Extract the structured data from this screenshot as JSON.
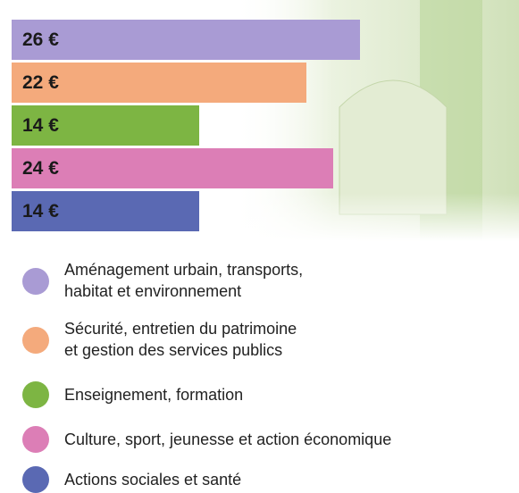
{
  "chart_data": {
    "type": "bar",
    "orientation": "horizontal",
    "categories": [
      "Aménagement urbain, transports,\nhabitat et environnement",
      "Sécurité, entretien du patrimoine\net gestion des services publics",
      "Enseignement, formation",
      "Culture, sport, jeunesse et action économique",
      "Actions sociales et santé"
    ],
    "values": [
      26,
      22,
      14,
      24,
      14
    ],
    "value_labels": [
      "26 €",
      "22 €",
      "14 €",
      "24 €",
      "14 €"
    ],
    "colors": [
      "#a99bd4",
      "#f4aa7c",
      "#7db543",
      "#dc7eb6",
      "#5a69b3"
    ]
  }
}
